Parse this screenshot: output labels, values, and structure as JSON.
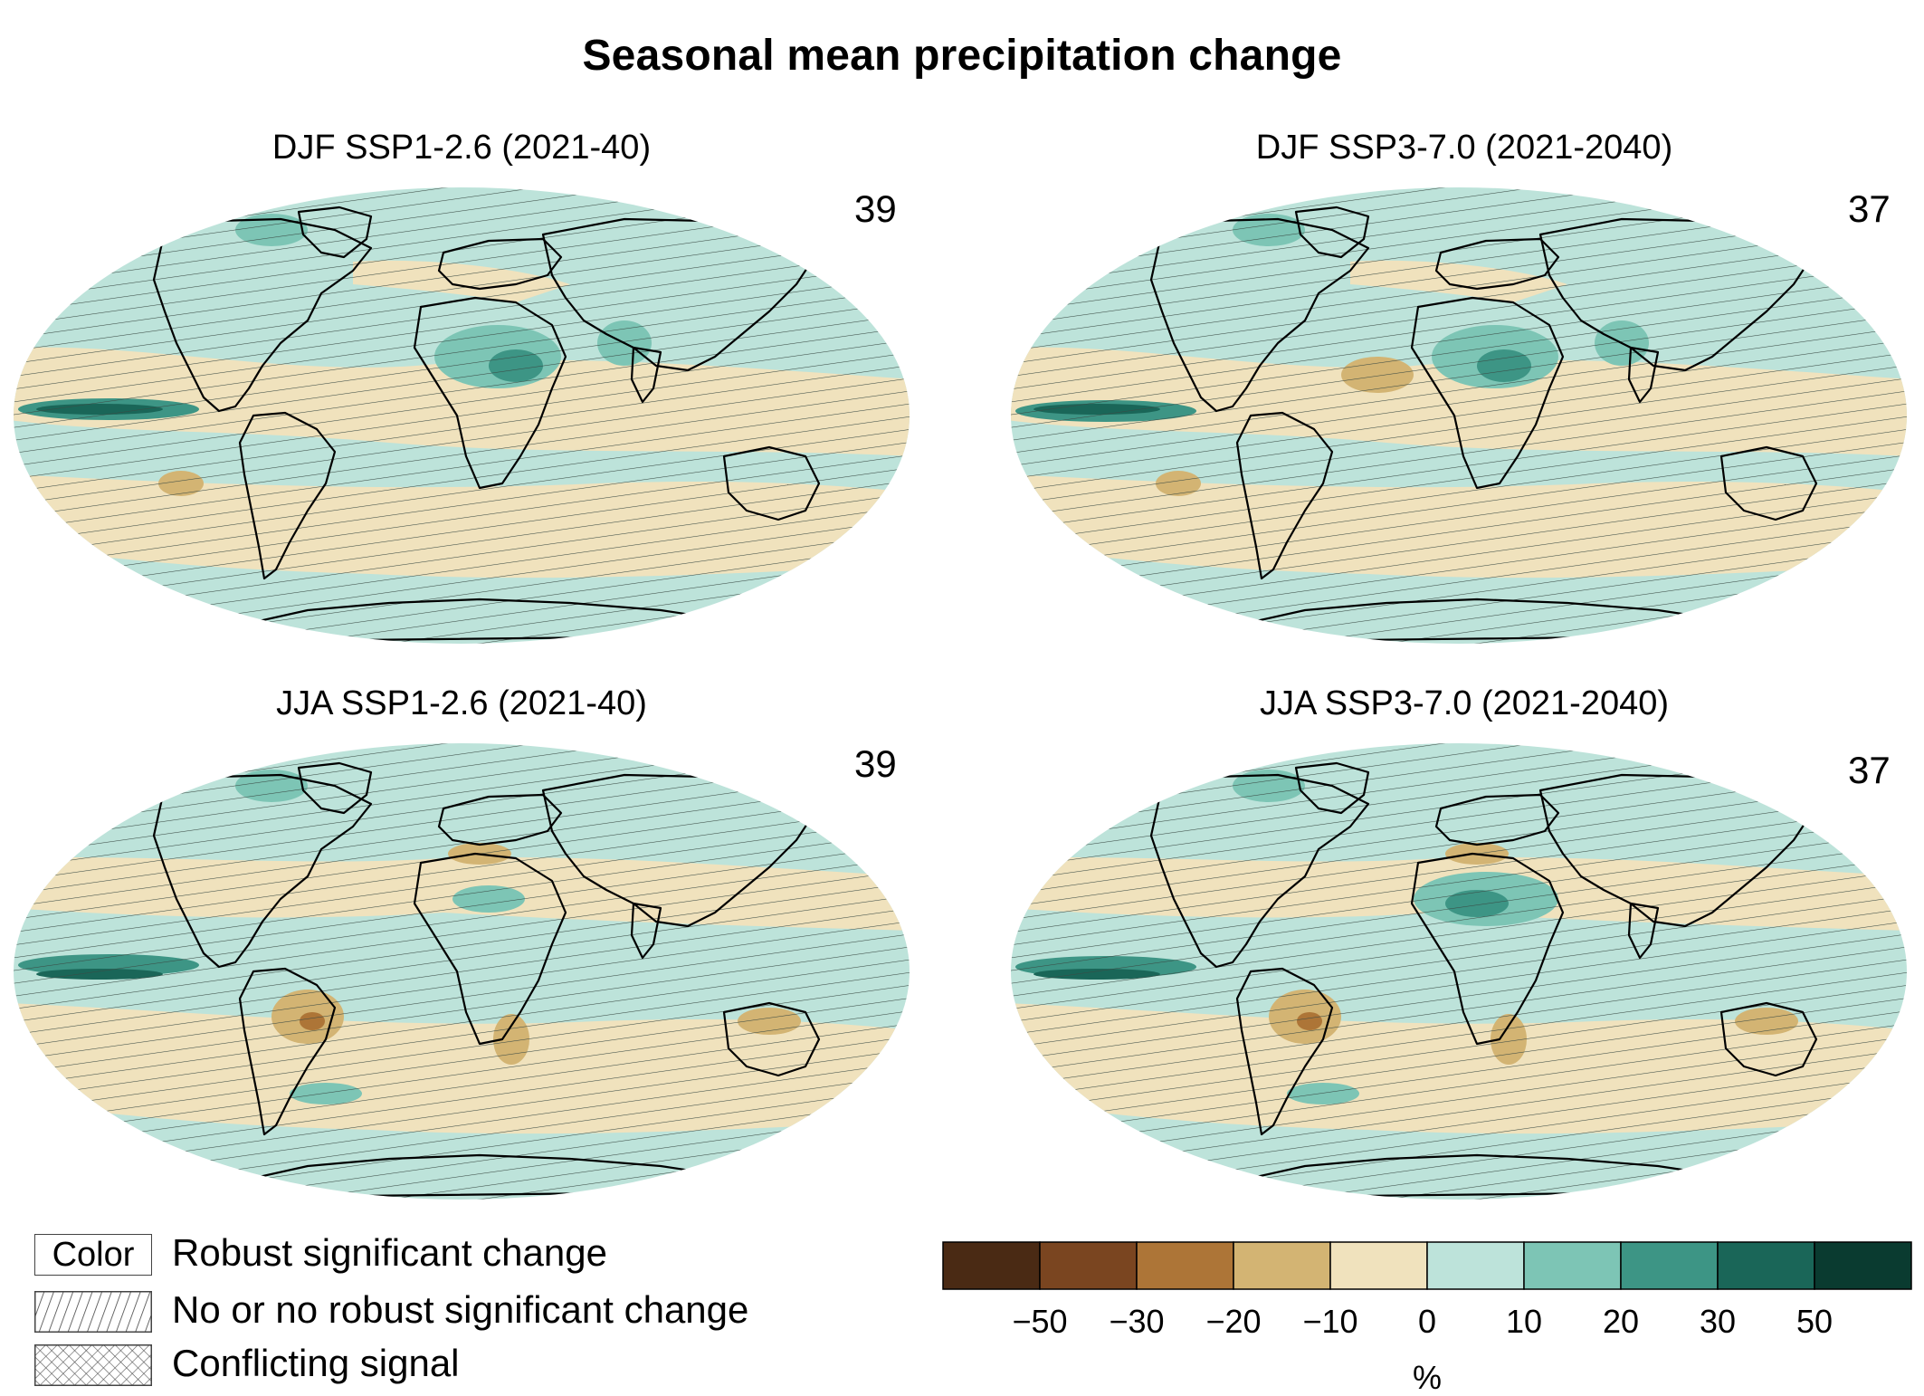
{
  "title": "Seasonal mean precipitation change",
  "panels": [
    {
      "title": "DJF SSP1-2.6 (2021-40)",
      "n": "39"
    },
    {
      "title": "DJF SSP3-7.0 (2021-2040)",
      "n": "37"
    },
    {
      "title": "JJA SSP1-2.6 (2021-40)",
      "n": "39"
    },
    {
      "title": "JJA SSP3-7.0 (2021-2040)",
      "n": "37"
    }
  ],
  "legend": {
    "color_box": "Color",
    "robust": "Robust significant change",
    "no_robust": "No or no robust significant change",
    "conflicting": "Conflicting signal"
  },
  "colorbar": {
    "unit": "%",
    "ticks": [
      "−50",
      "−30",
      "−20",
      "−10",
      "0",
      "10",
      "20",
      "30",
      "50"
    ],
    "colors": [
      "#4a2a14",
      "#7a4520",
      "#ad7537",
      "#d3b473",
      "#f0e2bd",
      "#bde3da",
      "#7dc5b5",
      "#3d9585",
      "#1a6658",
      "#0a3b30"
    ]
  },
  "map_colors": {
    "ocean_wet": "#bde3da",
    "dry": "#f0e2bd",
    "wet_mid": "#7dc5b5",
    "wet_strong": "#3d9585",
    "dry_mid": "#d3b473",
    "dry_strong": "#ad7537"
  }
}
